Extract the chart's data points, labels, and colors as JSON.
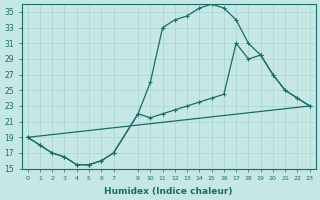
{
  "xlabel": "Humidex (Indice chaleur)",
  "bg_color": "#c5e8e5",
  "line_color": "#1a6b6b",
  "grid_color": "#a8d4d0",
  "xlim": [
    -0.5,
    23.5
  ],
  "ylim": [
    15,
    36
  ],
  "yticks": [
    15,
    17,
    19,
    21,
    23,
    25,
    27,
    29,
    31,
    33,
    35
  ],
  "xticks": [
    0,
    1,
    2,
    3,
    4,
    5,
    6,
    7,
    9,
    10,
    11,
    12,
    13,
    14,
    15,
    16,
    17,
    18,
    19,
    20,
    21,
    22,
    23
  ],
  "xtick_labels": [
    "0",
    "1",
    "2",
    "3",
    "4",
    "5",
    "6",
    "7",
    "9",
    "10",
    "11",
    "12",
    "13",
    "14",
    "15",
    "16",
    "17",
    "18",
    "19",
    "20",
    "21",
    "22",
    "23"
  ],
  "line1_x": [
    0,
    1,
    2,
    3,
    4,
    5,
    6,
    7,
    9,
    10,
    11,
    12,
    13,
    14,
    15,
    16,
    17,
    18,
    19,
    20,
    21,
    22,
    23
  ],
  "line1_y": [
    19,
    18,
    17,
    16.5,
    15.5,
    15.5,
    16,
    17,
    22,
    26,
    33,
    34,
    34.5,
    35.5,
    36,
    35.5,
    34,
    31,
    29.5,
    27,
    25,
    24,
    23
  ],
  "line2_x": [
    0,
    1,
    2,
    3,
    4,
    5,
    6,
    7,
    9,
    10,
    11,
    12,
    13,
    14,
    15,
    16,
    17,
    18,
    19,
    20,
    21,
    22,
    23
  ],
  "line2_y": [
    19,
    18,
    17,
    16.5,
    15.5,
    15.5,
    16,
    17,
    22,
    21.5,
    22,
    22.5,
    23,
    23.5,
    24,
    24.5,
    31,
    29,
    29.5,
    27,
    25,
    24,
    23
  ],
  "line3_x": [
    0,
    23
  ],
  "line3_y": [
    19,
    23
  ]
}
